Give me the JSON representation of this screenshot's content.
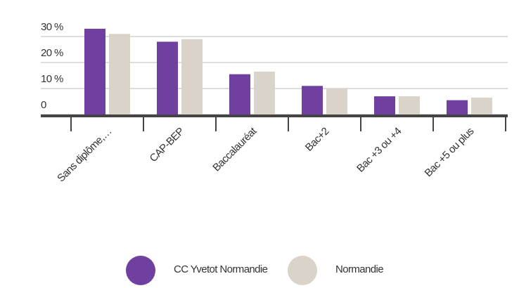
{
  "chart_data": {
    "type": "bar",
    "categories": [
      "Sans diplôme,…",
      "CAP-BEP",
      "Baccalauréat",
      "Bac+2",
      "Bac +3 ou +4",
      "Bac +5 ou plus"
    ],
    "series": [
      {
        "name": "CC Yvetot Normandie",
        "color": "#7040a0",
        "values": [
          33,
          28,
          15.5,
          11,
          7,
          5.5
        ]
      },
      {
        "name": "Normandie",
        "color": "#d9d3c9",
        "values": [
          31,
          29,
          16.5,
          10,
          7,
          6.5
        ]
      }
    ],
    "ylim": [
      0,
      35
    ],
    "yticks": [
      0,
      {
        "value": 10,
        "label": "10 %"
      },
      {
        "value": 20,
        "label": "20 %"
      },
      {
        "value": 30,
        "label": "30 %"
      }
    ],
    "grid": true
  }
}
